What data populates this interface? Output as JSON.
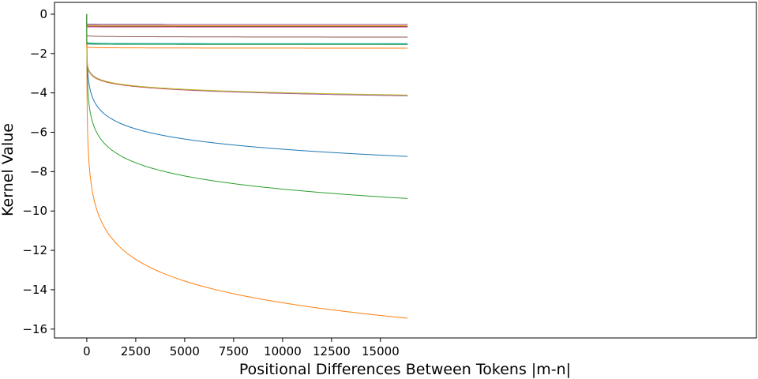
{
  "chart_data": {
    "type": "line",
    "xlabel": "Positional Differences Between Tokens |m-n|",
    "ylabel": "Kernel Value",
    "xlim": [
      -1650,
      34200
    ],
    "ylim": [
      -16.45,
      0.6
    ],
    "xticks": [
      0,
      2500,
      5000,
      7500,
      10000,
      12500,
      15000
    ],
    "xtick_labels": [
      "0",
      "2500",
      "5000",
      "7500",
      "10000",
      "12500",
      "15000"
    ],
    "yticks": [
      0,
      -2,
      -4,
      -6,
      -8,
      -10,
      -12,
      -14,
      -16
    ],
    "ytick_labels": [
      "0",
      "−2",
      "−4",
      "−6",
      "−8",
      "−10",
      "−12",
      "−14",
      "−16"
    ],
    "grid": false,
    "legend": "none",
    "x_max": 16384,
    "series": [
      {
        "color": "#1f77b4",
        "model": "log",
        "a": 0.0,
        "b": -0.745
      },
      {
        "color": "#ff7f0e",
        "model": "log",
        "a": 0.0,
        "b": -1.592
      },
      {
        "color": "#2ca02c",
        "model": "log",
        "a": 0.0,
        "b": -0.965
      },
      {
        "color": "#d62728",
        "model": "log",
        "a": -1.72,
        "b": -0.25
      },
      {
        "color": "#9467bd",
        "model": "log",
        "a": -1.62,
        "b": -0.26
      },
      {
        "color": "#bcbd22",
        "model": "log",
        "a": -1.73,
        "b": -0.245
      },
      {
        "color": "#1f77b4",
        "model": "flat",
        "a": -0.5,
        "b": -0.0025
      },
      {
        "color": "#ff7f0e",
        "model": "flat",
        "a": -0.55,
        "b": -0.0025
      },
      {
        "color": "#2ca02c",
        "model": "flat",
        "a": -0.6,
        "b": -0.0025
      },
      {
        "color": "#d62728",
        "model": "flat",
        "a": -0.62,
        "b": -0.0025
      },
      {
        "color": "#9467bd",
        "model": "flat",
        "a": -0.5,
        "b": -0.0025
      },
      {
        "color": "#8c564b",
        "model": "flat",
        "a": -1.05,
        "b": -0.012
      },
      {
        "color": "#e377c2",
        "model": "flat",
        "a": -0.64,
        "b": -0.0025
      },
      {
        "color": "#7f7f7f",
        "model": "flat",
        "a": -1.4,
        "b": -0.012
      },
      {
        "color": "#17becf",
        "model": "flat",
        "a": -1.45,
        "b": -0.005
      },
      {
        "color": "#1f77b4",
        "model": "flat",
        "a": -1.5,
        "b": -0.004
      },
      {
        "color": "#ff7f0e",
        "model": "flat",
        "a": -1.65,
        "b": -0.008
      },
      {
        "color": "#2ca02c",
        "model": "flat",
        "a": -1.5,
        "b": -0.003
      }
    ]
  }
}
